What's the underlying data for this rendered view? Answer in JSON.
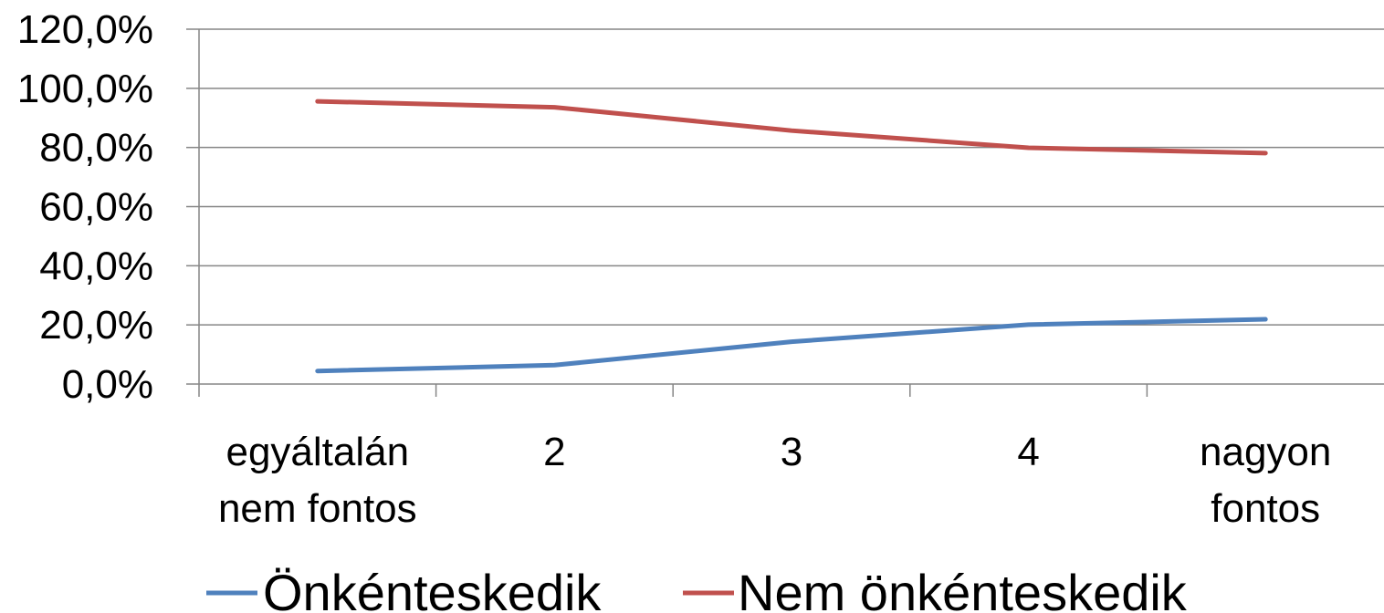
{
  "chart_data": {
    "type": "line",
    "title": "",
    "xlabel": "",
    "ylabel": "",
    "categories": [
      [
        "egyáltalán",
        "nem fontos"
      ],
      [
        "2"
      ],
      [
        "3"
      ],
      [
        "4"
      ],
      [
        "nagyon",
        "fontos"
      ]
    ],
    "y_ticks": [
      "0,0%",
      "20,0%",
      "40,0%",
      "60,0%",
      "80,0%",
      "100,0%",
      "120,0%"
    ],
    "ylim": [
      0,
      120
    ],
    "grid": true,
    "legend_position": "bottom",
    "series": [
      {
        "name": "Önkénteskedik",
        "color": "#4f81bd",
        "values": [
          4.4,
          6.4,
          14.3,
          20.1,
          21.9
        ]
      },
      {
        "name": "Nem önkénteskedik",
        "color": "#c0504d",
        "values": [
          95.6,
          93.6,
          85.7,
          79.9,
          78.1
        ]
      }
    ]
  }
}
